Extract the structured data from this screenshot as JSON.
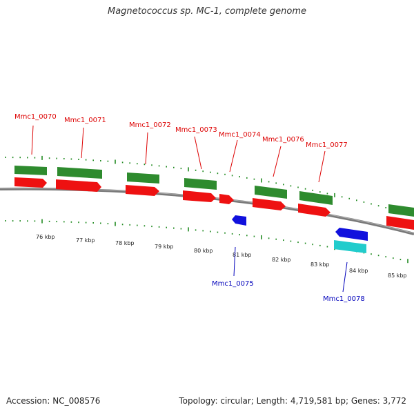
{
  "title": "Magnetococcus sp. MC-1, complete genome",
  "footer": {
    "accession": "Accession: NC_008576",
    "stats": "Topology: circular; Length: 4,719,581 bp; Genes: 3,772"
  },
  "colors": {
    "forward_gene": "#2e8b2e",
    "forward_cds": "#ee1111",
    "reverse_gene": "#1010dd",
    "reverse_cds": "#22cccc",
    "forward_label": "#dd0000",
    "reverse_label": "#0000bb",
    "backbone": "#808080",
    "tick": "#228b22"
  },
  "scale_labels": [
    "76 kbp",
    "77 kbp",
    "78 kbp",
    "79 kbp",
    "80 kbp",
    "81 kbp",
    "82 kbp",
    "83 kbp",
    "84 kbp",
    "85 kbp"
  ],
  "forward_genes": [
    "Mmc1_0070",
    "Mmc1_0071",
    "Mmc1_0072",
    "Mmc1_0073",
    "Mmc1_0074",
    "Mmc1_0076",
    "Mmc1_0077"
  ],
  "reverse_genes": [
    "Mmc1_0075",
    "Mmc1_0078"
  ]
}
